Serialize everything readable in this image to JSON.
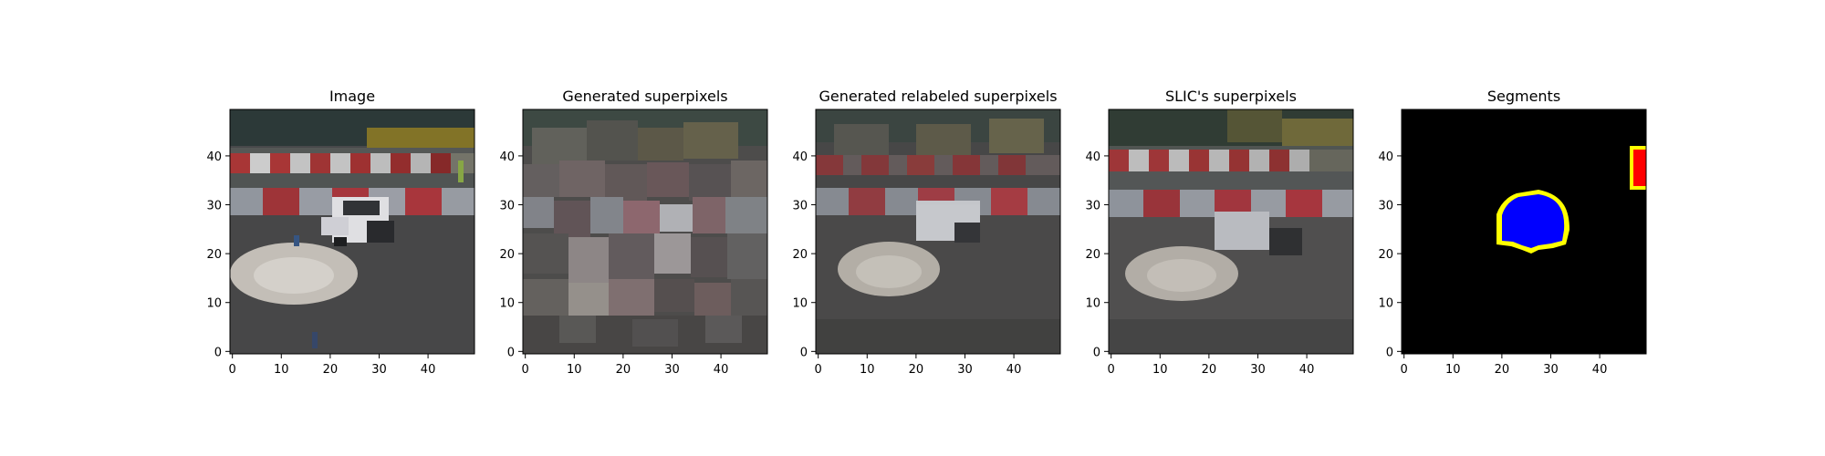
{
  "panels": [
    {
      "key": "image",
      "title": "Image"
    },
    {
      "key": "gen",
      "title": "Generated superpixels"
    },
    {
      "key": "relabel",
      "title": "Generated relabeled superpixels"
    },
    {
      "key": "slic",
      "title": "SLIC's superpixels"
    },
    {
      "key": "seg",
      "title": "Segments"
    }
  ],
  "axes": {
    "x_ticks": [
      "0",
      "10",
      "20",
      "30",
      "40"
    ],
    "y_ticks": [
      "0",
      "10",
      "20",
      "30",
      "40"
    ],
    "xlim": [
      -0.5,
      49.5
    ],
    "ylim": [
      49.5,
      -0.5
    ],
    "grid": false
  },
  "colors": {
    "segment_blue": "#0000ff",
    "segment_red": "#ff0000",
    "segment_boundary": "#ffff00",
    "segment_background": "#000000"
  }
}
